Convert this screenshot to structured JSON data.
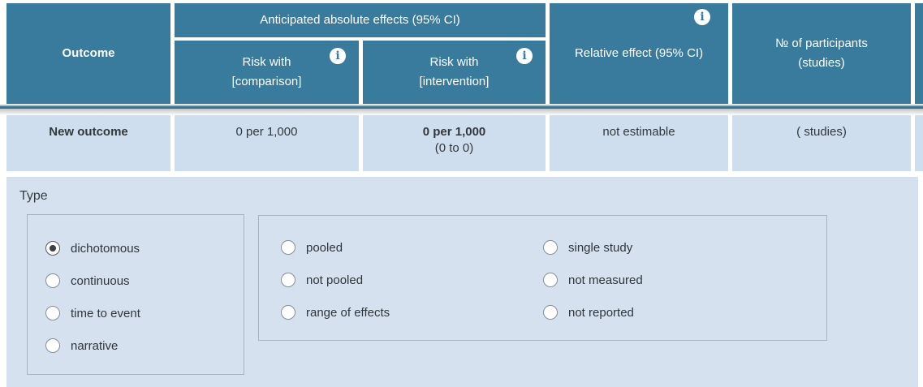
{
  "table": {
    "header": {
      "outcome": "Outcome",
      "absolute_effects": "Anticipated absolute effects (95% CI)",
      "risk_comparison_line1": "Risk with",
      "risk_comparison_line2": "[comparison]",
      "risk_intervention_line1": "Risk with",
      "risk_intervention_line2": "[intervention]",
      "relative_effect": "Relative effect (95% CI)",
      "participants_line1": "№ of participants",
      "participants_line2": "(studies)",
      "info_icon_glyph": "i"
    },
    "row": {
      "outcome": "New outcome",
      "risk_comparison": "0 per 1,000",
      "risk_intervention_value": "0 per 1,000",
      "risk_intervention_ci": "(0 to 0)",
      "relative_effect": "not estimable",
      "participants": "( studies)"
    }
  },
  "editor": {
    "type_label": "Type",
    "type_options": [
      {
        "label": "dichotomous",
        "selected": true
      },
      {
        "label": "continuous",
        "selected": false
      },
      {
        "label": "time to event",
        "selected": false
      },
      {
        "label": "narrative",
        "selected": false
      }
    ],
    "metric_options_col1": [
      {
        "label": "pooled",
        "selected": false
      },
      {
        "label": "not pooled",
        "selected": false
      },
      {
        "label": "range of effects",
        "selected": false
      }
    ],
    "metric_options_col2": [
      {
        "label": "single study",
        "selected": false
      },
      {
        "label": "not measured",
        "selected": false
      },
      {
        "label": "not reported",
        "selected": false
      }
    ]
  },
  "colors": {
    "header_bg": "#397b9d",
    "divider_teal": "#2e7596",
    "row_bg": "#cfdeee",
    "panel_bg": "#d5e1ee",
    "text_dark": "#32373c"
  }
}
